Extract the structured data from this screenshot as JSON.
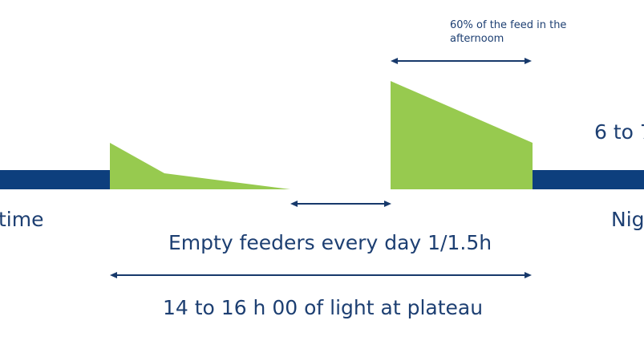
{
  "colors": {
    "timeline": "#0d3f7d",
    "feed": "#97ca4f",
    "arrow": "#17396b",
    "text": "#1d3f72",
    "background": "#ffffff"
  },
  "labels": {
    "left_edge": "time",
    "right_edge": "Nig",
    "right_top": "6 to 7",
    "feed_note_line1": "60% of the feed in the",
    "feed_note_line2": "afternoom",
    "empty_feeders": "Empty feeders every day 1/1.5h",
    "light_plateau": "14 to 16 h 00 of light at plateau"
  }
}
